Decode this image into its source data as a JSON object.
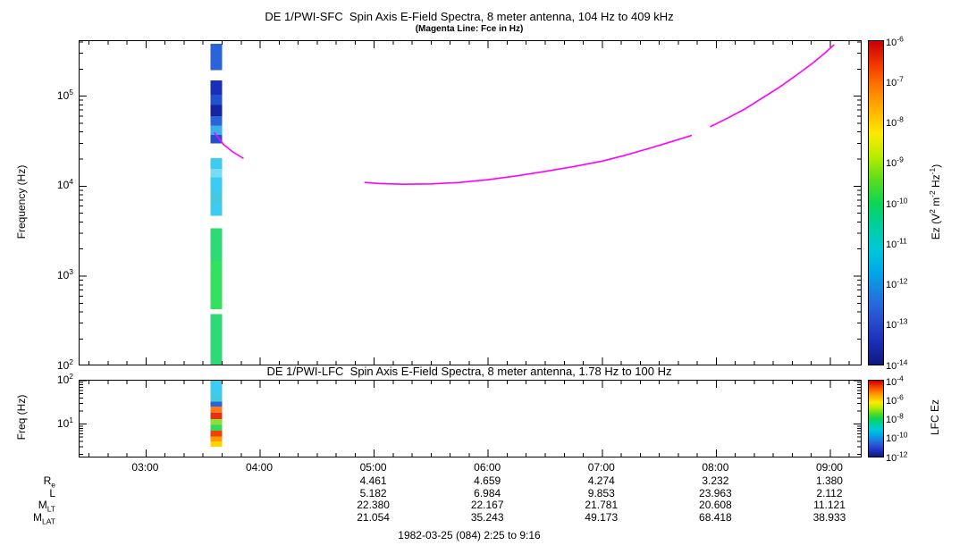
{
  "footer": {
    "caption": "1982-03-25 (084) 2:25 to 9:16"
  },
  "xaxis": {
    "range_hours": [
      2.4167,
      9.2667
    ],
    "minor_per_hour": 6,
    "major_ticks": [
      {
        "hour": 3,
        "label": "03:00"
      },
      {
        "hour": 4,
        "label": "04:00"
      },
      {
        "hour": 5,
        "label": "05:00"
      },
      {
        "hour": 6,
        "label": "06:00"
      },
      {
        "hour": 7,
        "label": "07:00"
      },
      {
        "hour": 8,
        "label": "08:00"
      },
      {
        "hour": 9,
        "label": "09:00"
      }
    ]
  },
  "colorbar_gradient": [
    "#c40000",
    "#f43600",
    "#ff7a00",
    "#ffb300",
    "#ffe800",
    "#b6ec00",
    "#5bdd1e",
    "#0ed455",
    "#00cfa0",
    "#00c8d8",
    "#00a8e8",
    "#1f7ae0",
    "#2a50d0",
    "#1a2fb8",
    "#10187e"
  ],
  "chart_data": [
    {
      "type": "heatmap",
      "title": "DE 1/PWI-SFC  Spin Axis E-Field Spectra, 8 meter antenna, 104 Hz to 409 kHz",
      "subtitle": "(Magenta Line: Fce in Hz)",
      "ylabel": "Frequency (Hz)",
      "y_log_range": [
        2.017,
        5.612
      ],
      "y_major_exps": [
        2,
        3,
        4,
        5
      ],
      "colorbar": {
        "exp_ticks": [
          -6,
          -7,
          -8,
          -9,
          -10,
          -11,
          -12,
          -13,
          -14
        ],
        "label_tokens": [
          {
            "t": "Ez (V"
          },
          {
            "sup": "2"
          },
          {
            "t": " m"
          },
          {
            "sup": "-2"
          },
          {
            "t": " Hz"
          },
          {
            "sup": "-1"
          },
          {
            "t": ")"
          }
        ]
      },
      "stripe": {
        "t0": 3.565,
        "t1": 3.668,
        "segments": [
          {
            "f_hi": 380000,
            "f_lo": 195000,
            "color": "#2b63d9"
          },
          {
            "f_hi": 150000,
            "f_lo": 104000,
            "color": "#1a2fb8"
          },
          {
            "f_hi": 104000,
            "f_lo": 80000,
            "color": "#2450d0"
          },
          {
            "f_hi": 80000,
            "f_lo": 60000,
            "color": "#14259f"
          },
          {
            "f_hi": 60000,
            "f_lo": 47000,
            "color": "#2b63d9"
          },
          {
            "f_hi": 47000,
            "f_lo": 37000,
            "color": "#39b0e8"
          },
          {
            "f_hi": 37000,
            "f_lo": 30000,
            "color": "#2450d0"
          },
          {
            "f_hi": 20500,
            "f_lo": 15500,
            "color": "#3ecbf2"
          },
          {
            "f_hi": 15500,
            "f_lo": 12500,
            "color": "#79dcf6"
          },
          {
            "f_hi": 12500,
            "f_lo": 8500,
            "color": "#3ecbf2"
          },
          {
            "f_hi": 8500,
            "f_lo": 6200,
            "color": "#46c8de"
          },
          {
            "f_hi": 6200,
            "f_lo": 4700,
            "color": "#3ecbf2"
          },
          {
            "f_hi": 3400,
            "f_lo": 1500,
            "color": "#2fd977"
          },
          {
            "f_hi": 1500,
            "f_lo": 430,
            "color": "#35df5f"
          },
          {
            "f_hi": 380,
            "f_lo": 104,
            "color": "#2fd977"
          }
        ]
      },
      "fce_line": {
        "color": "#ff00ff",
        "segments": [
          [
            [
              3.6,
              39000
            ],
            [
              3.68,
              29000
            ],
            [
              3.76,
              24000
            ],
            [
              3.85,
              20500
            ]
          ],
          [
            [
              4.92,
              11000
            ],
            [
              5.05,
              10700
            ],
            [
              5.25,
              10500
            ],
            [
              5.5,
              10600
            ],
            [
              5.75,
              11000
            ],
            [
              6.0,
              11800
            ],
            [
              6.25,
              13000
            ],
            [
              6.5,
              14600
            ],
            [
              6.75,
              16500
            ],
            [
              7.0,
              19000
            ],
            [
              7.2,
              22000
            ],
            [
              7.4,
              26000
            ],
            [
              7.6,
              31000
            ],
            [
              7.78,
              36500
            ]
          ],
          [
            [
              7.95,
              46000
            ],
            [
              8.1,
              57000
            ],
            [
              8.25,
              72000
            ],
            [
              8.4,
              95000
            ],
            [
              8.55,
              125000
            ],
            [
              8.7,
              170000
            ],
            [
              8.85,
              235000
            ],
            [
              8.95,
              300000
            ],
            [
              9.03,
              370000
            ]
          ]
        ]
      }
    },
    {
      "type": "heatmap",
      "title": "DE 1/PWI-LFC  Spin Axis E-Field Spectra, 8 meter antenna, 1.78 Hz to 100 Hz",
      "ylabel": "Freq (Hz)",
      "y_log_range": [
        0.25,
        2.0
      ],
      "y_major_exps": [
        1,
        2
      ],
      "colorbar": {
        "exp_ticks": [
          -4,
          -6,
          -8,
          -10,
          -12
        ],
        "label_tokens": [
          {
            "t": "LFC Ez"
          }
        ]
      },
      "stripe": {
        "t0": 3.565,
        "t1": 3.668,
        "segments": [
          {
            "f_hi": 100,
            "f_lo": 48,
            "color": "#3ecbf2"
          },
          {
            "f_hi": 48,
            "f_lo": 33,
            "color": "#46c8de"
          },
          {
            "f_hi": 33,
            "f_lo": 25,
            "color": "#2b63d9"
          },
          {
            "f_hi": 25,
            "f_lo": 18,
            "color": "#ff7a1a"
          },
          {
            "f_hi": 18,
            "f_lo": 13,
            "color": "#e83010"
          },
          {
            "f_hi": 13,
            "f_lo": 9.5,
            "color": "#8ae03a"
          },
          {
            "f_hi": 9.5,
            "f_lo": 7,
            "color": "#35d95f"
          },
          {
            "f_hi": 7,
            "f_lo": 5.2,
            "color": "#ee4400"
          },
          {
            "f_hi": 5.2,
            "f_lo": 4,
            "color": "#ff9a00"
          },
          {
            "f_hi": 4,
            "f_lo": 3,
            "color": "#ffd400"
          }
        ]
      }
    }
  ],
  "ephemeris": {
    "column_hours": [
      5,
      6,
      7,
      8,
      9
    ],
    "rows": [
      {
        "name": "Re",
        "label_tokens": [
          {
            "t": "R"
          },
          {
            "sub": "e"
          }
        ],
        "values": [
          "4.461",
          "4.659",
          "4.274",
          "3.232",
          "1.380"
        ]
      },
      {
        "name": "L",
        "label_tokens": [
          {
            "t": "L"
          }
        ],
        "values": [
          "5.182",
          "6.984",
          "9.853",
          "23.963",
          "2.112"
        ]
      },
      {
        "name": "MLT",
        "label_tokens": [
          {
            "t": "M"
          },
          {
            "sub": "LT"
          }
        ],
        "values": [
          "22.380",
          "22.167",
          "21.781",
          "20.608",
          "11.121"
        ]
      },
      {
        "name": "MLAT",
        "label_tokens": [
          {
            "t": "M"
          },
          {
            "sub": "LAT"
          }
        ],
        "values": [
          "21.054",
          "35.243",
          "49.173",
          "68.418",
          "38.933"
        ]
      }
    ]
  }
}
